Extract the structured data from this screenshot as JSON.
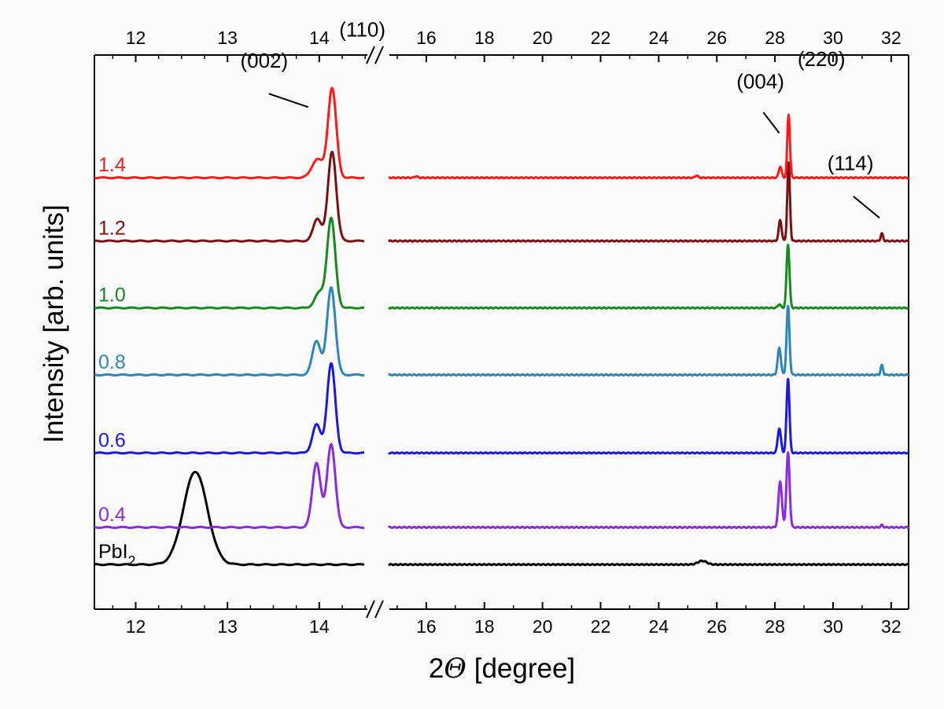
{
  "chart_data": {
    "type": "line",
    "title": "",
    "xlabel": {
      "prefix": "2",
      "italic": "Θ",
      "suffix": " [degree]"
    },
    "ylabel": "Intensity [arb. units]",
    "x_break": {
      "segments": [
        [
          11.55,
          14.55
        ],
        [
          14.65,
          32.6
        ]
      ],
      "marker": "//"
    },
    "xticks_left": [
      "12",
      "13",
      "14"
    ],
    "xticks_right": [
      "16",
      "18",
      "20",
      "22",
      "24",
      "26",
      "28",
      "30",
      "32"
    ],
    "yrange": [
      -0.6,
      6.85
    ],
    "series": [
      {
        "name": "PbI2",
        "label_main": "PbI",
        "label_sub": "2",
        "color": "#000000",
        "offset": 0,
        "peaks": [
          {
            "pos": 12.65,
            "height": 1.25,
            "width": 0.13
          },
          {
            "pos": 25.5,
            "height": 0.05,
            "width": 0.15
          }
        ]
      },
      {
        "name": "0.4",
        "label_main": "0.4",
        "color": "#8a2be2",
        "offset": 0.5,
        "peaks": [
          {
            "pos": 13.97,
            "height": 0.87,
            "width": 0.045
          },
          {
            "pos": 14.13,
            "height": 1.12,
            "width": 0.045
          },
          {
            "pos": 28.18,
            "height": 0.62,
            "width": 0.06
          },
          {
            "pos": 28.45,
            "height": 1.0,
            "width": 0.055
          },
          {
            "pos": 31.68,
            "height": 0.03,
            "width": 0.04
          }
        ]
      },
      {
        "name": "0.6",
        "label_main": "0.6",
        "color": "#1a1adf",
        "offset": 1.5,
        "peaks": [
          {
            "pos": 13.97,
            "height": 0.38,
            "width": 0.045
          },
          {
            "pos": 14.13,
            "height": 1.2,
            "width": 0.045
          },
          {
            "pos": 28.15,
            "height": 0.33,
            "width": 0.055
          },
          {
            "pos": 28.45,
            "height": 1.0,
            "width": 0.05
          }
        ]
      },
      {
        "name": "0.8",
        "label_main": "0.8",
        "color": "#2e86b8",
        "offset": 2.55,
        "peaks": [
          {
            "pos": 13.97,
            "height": 0.46,
            "width": 0.045
          },
          {
            "pos": 14.13,
            "height": 1.18,
            "width": 0.045
          },
          {
            "pos": 28.15,
            "height": 0.36,
            "width": 0.055
          },
          {
            "pos": 28.45,
            "height": 0.92,
            "width": 0.05
          },
          {
            "pos": 31.68,
            "height": 0.13,
            "width": 0.04
          }
        ]
      },
      {
        "name": "1.0",
        "label_main": "1.0",
        "color": "#168a1e",
        "offset": 3.45,
        "peaks": [
          {
            "pos": 14.0,
            "height": 0.2,
            "width": 0.05
          },
          {
            "pos": 14.13,
            "height": 1.2,
            "width": 0.045
          },
          {
            "pos": 28.15,
            "height": 0.05,
            "width": 0.05
          },
          {
            "pos": 28.45,
            "height": 0.85,
            "width": 0.05
          }
        ]
      },
      {
        "name": "1.2",
        "label_main": "1.2",
        "color": "#7b1010",
        "offset": 4.35,
        "peaks": [
          {
            "pos": 13.98,
            "height": 0.3,
            "width": 0.045
          },
          {
            "pos": 14.14,
            "height": 1.2,
            "width": 0.045
          },
          {
            "pos": 28.18,
            "height": 0.28,
            "width": 0.05
          },
          {
            "pos": 28.47,
            "height": 1.05,
            "width": 0.045
          },
          {
            "pos": 31.68,
            "height": 0.1,
            "width": 0.04
          }
        ]
      },
      {
        "name": "1.4",
        "label_main": "1.4",
        "color": "#ff1a1a",
        "offset": 5.2,
        "peaks": [
          {
            "pos": 13.98,
            "height": 0.25,
            "width": 0.06
          },
          {
            "pos": 14.14,
            "height": 1.2,
            "width": 0.045
          },
          {
            "pos": 28.18,
            "height": 0.15,
            "width": 0.05
          },
          {
            "pos": 28.47,
            "height": 0.85,
            "width": 0.045
          },
          {
            "pos": 15.65,
            "height": 0.02,
            "width": 0.05
          },
          {
            "pos": 25.3,
            "height": 0.03,
            "width": 0.05
          }
        ]
      }
    ],
    "annotations": [
      {
        "text": "(002)",
        "x": 13.4,
        "y": 6.68,
        "pointer_from": [
          13.45,
          6.33
        ],
        "pointer_to": [
          13.88,
          6.15
        ]
      },
      {
        "text": "(110)",
        "x": 14.47,
        "y": 7.1
      },
      {
        "text": "(004)",
        "x": 27.5,
        "y": 6.4,
        "pointer_from": [
          27.6,
          6.08
        ],
        "pointer_to": [
          28.15,
          5.8
        ]
      },
      {
        "text": "(220)",
        "x": 29.6,
        "y": 6.7
      },
      {
        "text": "(114)",
        "x": 30.6,
        "y": 5.3,
        "pointer_from": [
          30.7,
          4.95
        ],
        "pointer_to": [
          31.6,
          4.66
        ]
      }
    ]
  }
}
